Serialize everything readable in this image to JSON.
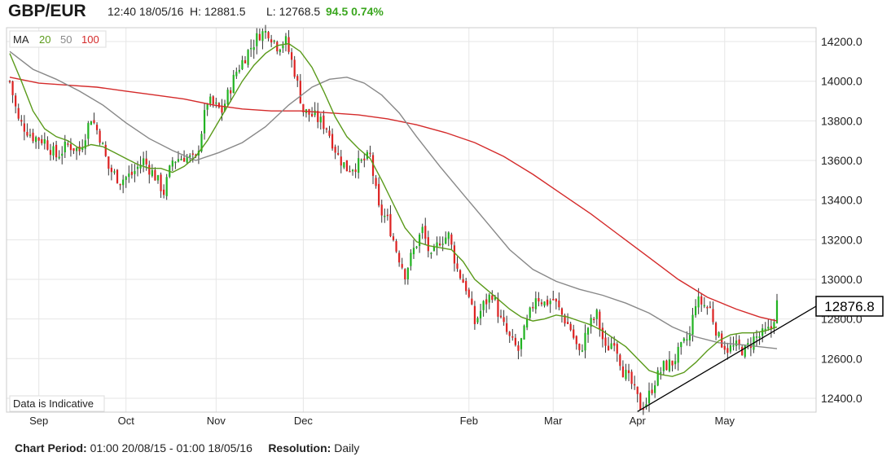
{
  "header": {
    "symbol": "GBP/EUR",
    "datetime": "12:40 18/05/16",
    "high": "H: 12881.5",
    "low": "L: 12768.5",
    "change": "94.5 0.74%"
  },
  "legend": {
    "label": "MA",
    "items": [
      {
        "text": "20",
        "color": "#5a9a1a"
      },
      {
        "text": "50",
        "color": "#888888"
      },
      {
        "text": "100",
        "color": "#d42a2a"
      }
    ]
  },
  "note": "Data is Indicative",
  "footer": {
    "period_label": "Chart Period:",
    "period_value": "01:00 20/08/15 - 01:00 18/05/16",
    "resolution_label": "Resolution:",
    "resolution_value": "Daily"
  },
  "colors": {
    "up": "#22b322",
    "down": "#dd2222",
    "ma20": "#5a9a1a",
    "ma50": "#888888",
    "ma100": "#d42a2a",
    "trend": "#000000"
  },
  "chart_data": {
    "type": "candlestick",
    "x_ticks": [
      "Sep",
      "Oct",
      "Nov",
      "Dec",
      "Feb",
      "Mar",
      "Apr",
      "May"
    ],
    "y_ticks": [
      "12400.0",
      "12600.0",
      "12800.0",
      "13000.0",
      "13200.0",
      "13400.0",
      "13600.0",
      "13800.0",
      "14000.0",
      "14200.0"
    ],
    "ylim": [
      12330,
      14270
    ],
    "last_price": "12876.8",
    "close_path": [
      [
        0,
        14000
      ],
      [
        3,
        13800
      ],
      [
        8,
        13720
      ],
      [
        12,
        13700
      ],
      [
        16,
        13620
      ],
      [
        20,
        13680
      ],
      [
        24,
        13650
      ],
      [
        28,
        13820
      ],
      [
        31,
        13720
      ],
      [
        34,
        13560
      ],
      [
        38,
        13500
      ],
      [
        42,
        13530
      ],
      [
        46,
        13600
      ],
      [
        50,
        13520
      ],
      [
        53,
        13440
      ],
      [
        56,
        13600
      ],
      [
        60,
        13620
      ],
      [
        64,
        13600
      ],
      [
        68,
        13900
      ],
      [
        73,
        13850
      ],
      [
        78,
        14050
      ],
      [
        82,
        14150
      ],
      [
        86,
        14240
      ],
      [
        89,
        14250
      ],
      [
        92,
        14180
      ],
      [
        95,
        14200
      ],
      [
        98,
        14050
      ],
      [
        101,
        13850
      ],
      [
        105,
        13820
      ],
      [
        109,
        13770
      ],
      [
        113,
        13620
      ],
      [
        116,
        13560
      ],
      [
        120,
        13580
      ],
      [
        124,
        13620
      ],
      [
        127,
        13350
      ],
      [
        130,
        13300
      ],
      [
        133,
        13150
      ],
      [
        136,
        13030
      ],
      [
        139,
        13150
      ],
      [
        142,
        13250
      ],
      [
        145,
        13100
      ],
      [
        148,
        13200
      ],
      [
        151,
        13220
      ],
      [
        154,
        13050
      ],
      [
        157,
        12960
      ],
      [
        160,
        12780
      ],
      [
        163,
        12870
      ],
      [
        166,
        12930
      ],
      [
        169,
        12790
      ],
      [
        172,
        12700
      ],
      [
        175,
        12640
      ],
      [
        178,
        12780
      ],
      [
        181,
        12920
      ],
      [
        184,
        12880
      ],
      [
        187,
        12900
      ],
      [
        190,
        12820
      ],
      [
        193,
        12750
      ],
      [
        196,
        12620
      ],
      [
        199,
        12760
      ],
      [
        202,
        12820
      ],
      [
        205,
        12640
      ],
      [
        208,
        12700
      ],
      [
        211,
        12540
      ],
      [
        214,
        12470
      ],
      [
        217,
        12360
      ],
      [
        219,
        12380
      ],
      [
        222,
        12490
      ],
      [
        225,
        12560
      ],
      [
        228,
        12580
      ],
      [
        231,
        12650
      ],
      [
        234,
        12720
      ],
      [
        236,
        12890
      ],
      [
        238,
        12880
      ],
      [
        241,
        12850
      ],
      [
        244,
        12700
      ],
      [
        247,
        12650
      ],
      [
        250,
        12660
      ],
      [
        253,
        12640
      ],
      [
        256,
        12700
      ],
      [
        259,
        12720
      ],
      [
        262,
        12750
      ],
      [
        264,
        12877
      ]
    ],
    "ma20": [
      [
        0,
        14140
      ],
      [
        4,
        14000
      ],
      [
        8,
        13850
      ],
      [
        12,
        13760
      ],
      [
        16,
        13720
      ],
      [
        20,
        13700
      ],
      [
        24,
        13660
      ],
      [
        28,
        13680
      ],
      [
        32,
        13670
      ],
      [
        36,
        13640
      ],
      [
        40,
        13610
      ],
      [
        44,
        13580
      ],
      [
        48,
        13560
      ],
      [
        52,
        13560
      ],
      [
        56,
        13540
      ],
      [
        60,
        13570
      ],
      [
        64,
        13620
      ],
      [
        68,
        13700
      ],
      [
        72,
        13800
      ],
      [
        76,
        13900
      ],
      [
        80,
        14000
      ],
      [
        84,
        14080
      ],
      [
        88,
        14140
      ],
      [
        92,
        14180
      ],
      [
        96,
        14190
      ],
      [
        100,
        14150
      ],
      [
        104,
        14070
      ],
      [
        108,
        13950
      ],
      [
        112,
        13820
      ],
      [
        116,
        13720
      ],
      [
        120,
        13660
      ],
      [
        124,
        13610
      ],
      [
        128,
        13500
      ],
      [
        132,
        13380
      ],
      [
        136,
        13260
      ],
      [
        140,
        13190
      ],
      [
        144,
        13170
      ],
      [
        148,
        13160
      ],
      [
        152,
        13150
      ],
      [
        156,
        13090
      ],
      [
        160,
        13000
      ],
      [
        164,
        12950
      ],
      [
        168,
        12900
      ],
      [
        172,
        12850
      ],
      [
        176,
        12810
      ],
      [
        180,
        12790
      ],
      [
        184,
        12800
      ],
      [
        188,
        12820
      ],
      [
        192,
        12810
      ],
      [
        196,
        12790
      ],
      [
        200,
        12770
      ],
      [
        204,
        12740
      ],
      [
        208,
        12700
      ],
      [
        212,
        12660
      ],
      [
        216,
        12600
      ],
      [
        220,
        12540
      ],
      [
        224,
        12520
      ],
      [
        228,
        12510
      ],
      [
        232,
        12530
      ],
      [
        236,
        12580
      ],
      [
        240,
        12640
      ],
      [
        244,
        12690
      ],
      [
        248,
        12720
      ],
      [
        252,
        12730
      ],
      [
        256,
        12730
      ],
      [
        260,
        12740
      ],
      [
        264,
        12760
      ]
    ],
    "ma50": [
      [
        0,
        14150
      ],
      [
        8,
        14060
      ],
      [
        16,
        14010
      ],
      [
        24,
        13950
      ],
      [
        32,
        13880
      ],
      [
        40,
        13790
      ],
      [
        48,
        13710
      ],
      [
        56,
        13650
      ],
      [
        64,
        13600
      ],
      [
        72,
        13640
      ],
      [
        80,
        13690
      ],
      [
        88,
        13770
      ],
      [
        96,
        13880
      ],
      [
        104,
        13970
      ],
      [
        110,
        14010
      ],
      [
        116,
        14020
      ],
      [
        122,
        13990
      ],
      [
        128,
        13930
      ],
      [
        134,
        13840
      ],
      [
        140,
        13720
      ],
      [
        148,
        13570
      ],
      [
        156,
        13430
      ],
      [
        164,
        13290
      ],
      [
        172,
        13150
      ],
      [
        180,
        13050
      ],
      [
        188,
        12990
      ],
      [
        196,
        12950
      ],
      [
        204,
        12920
      ],
      [
        212,
        12880
      ],
      [
        220,
        12830
      ],
      [
        228,
        12760
      ],
      [
        236,
        12710
      ],
      [
        244,
        12680
      ],
      [
        252,
        12670
      ],
      [
        258,
        12660
      ],
      [
        264,
        12650
      ]
    ],
    "ma100": [
      [
        0,
        14020
      ],
      [
        10,
        13990
      ],
      [
        20,
        13980
      ],
      [
        30,
        13970
      ],
      [
        40,
        13950
      ],
      [
        50,
        13930
      ],
      [
        60,
        13910
      ],
      [
        70,
        13880
      ],
      [
        80,
        13860
      ],
      [
        90,
        13850
      ],
      [
        100,
        13850
      ],
      [
        110,
        13840
      ],
      [
        120,
        13830
      ],
      [
        130,
        13810
      ],
      [
        140,
        13780
      ],
      [
        150,
        13740
      ],
      [
        160,
        13690
      ],
      [
        170,
        13620
      ],
      [
        180,
        13530
      ],
      [
        190,
        13430
      ],
      [
        200,
        13330
      ],
      [
        210,
        13220
      ],
      [
        220,
        13110
      ],
      [
        230,
        13000
      ],
      [
        240,
        12910
      ],
      [
        250,
        12850
      ],
      [
        258,
        12810
      ],
      [
        264,
        12790
      ]
    ],
    "trend_line": [
      [
        216,
        12333
      ],
      [
        264,
        12700
      ]
    ],
    "x_labels": [
      {
        "label": "Sep",
        "at": 10
      },
      {
        "label": "Oct",
        "at": 40
      },
      {
        "label": "Nov",
        "at": 71
      },
      {
        "label": "Dec",
        "at": 101
      },
      {
        "label": "Feb",
        "at": 158
      },
      {
        "label": "Mar",
        "at": 187
      },
      {
        "label": "Apr",
        "at": 216
      },
      {
        "label": "May",
        "at": 246
      }
    ],
    "n_candles": 265
  }
}
